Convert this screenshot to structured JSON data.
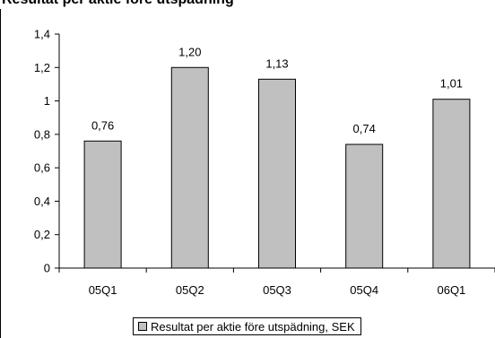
{
  "chart_data": {
    "type": "bar",
    "title": "Resultat per aktie före utspädning",
    "categories": [
      "05Q1",
      "05Q2",
      "05Q3",
      "05Q4",
      "06Q1"
    ],
    "series": [
      {
        "name": "Resultat per aktie före utspädning, SEK",
        "values": [
          0.76,
          1.2,
          1.13,
          0.74,
          1.01
        ],
        "data_labels": [
          "0,76",
          "1,20",
          "1,13",
          "0,74",
          "1,01"
        ]
      }
    ],
    "y_ticks": [
      "0",
      "0,2",
      "0,4",
      "0,6",
      "0,8",
      "1",
      "1,2",
      "1,4"
    ],
    "ylim": [
      0,
      1.4
    ],
    "grid": false,
    "legend_position": "bottom",
    "bar_color": "#c0c0c0",
    "bar_outline": "#000000"
  }
}
